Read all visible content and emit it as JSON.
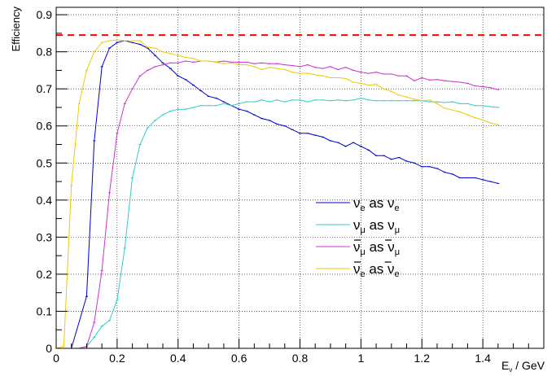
{
  "chart_data": {
    "type": "line",
    "title": "",
    "xlabel": "E_ν / GeV",
    "ylabel": "Efficiency",
    "xlim": [
      0,
      1.6
    ],
    "ylim": [
      0,
      0.92
    ],
    "grid": true,
    "legend_position": "center-right",
    "x_ticks": [
      "0",
      "0.2",
      "0.4",
      "0.6",
      "0.8",
      "1",
      "1.2",
      "1.4"
    ],
    "y_ticks": [
      "0",
      "0.1",
      "0.2",
      "0.3",
      "0.4",
      "0.5",
      "0.6",
      "0.7",
      "0.8",
      "0.9"
    ],
    "reference_line": {
      "y": 0.845,
      "color": "#ff0000"
    },
    "series": [
      {
        "name": "ν_e as ν_e",
        "color": "#0000cc",
        "points": [
          [
            0,
            0
          ],
          [
            0.05,
            0
          ],
          [
            0.1,
            0.14
          ],
          [
            0.125,
            0.56
          ],
          [
            0.15,
            0.76
          ],
          [
            0.175,
            0.81
          ],
          [
            0.2,
            0.825
          ],
          [
            0.225,
            0.83
          ],
          [
            0.25,
            0.825
          ],
          [
            0.275,
            0.82
          ],
          [
            0.3,
            0.81
          ],
          [
            0.325,
            0.79
          ],
          [
            0.35,
            0.77
          ],
          [
            0.375,
            0.755
          ],
          [
            0.4,
            0.735
          ],
          [
            0.425,
            0.725
          ],
          [
            0.45,
            0.71
          ],
          [
            0.475,
            0.695
          ],
          [
            0.5,
            0.68
          ],
          [
            0.525,
            0.675
          ],
          [
            0.55,
            0.665
          ],
          [
            0.575,
            0.655
          ],
          [
            0.6,
            0.645
          ],
          [
            0.625,
            0.64
          ],
          [
            0.65,
            0.63
          ],
          [
            0.675,
            0.62
          ],
          [
            0.7,
            0.615
          ],
          [
            0.725,
            0.605
          ],
          [
            0.75,
            0.6
          ],
          [
            0.775,
            0.59
          ],
          [
            0.8,
            0.58
          ],
          [
            0.825,
            0.58
          ],
          [
            0.85,
            0.575
          ],
          [
            0.875,
            0.57
          ],
          [
            0.9,
            0.56
          ],
          [
            0.925,
            0.555
          ],
          [
            0.95,
            0.545
          ],
          [
            0.975,
            0.555
          ],
          [
            1.0,
            0.545
          ],
          [
            1.025,
            0.535
          ],
          [
            1.05,
            0.52
          ],
          [
            1.075,
            0.52
          ],
          [
            1.1,
            0.51
          ],
          [
            1.125,
            0.515
          ],
          [
            1.15,
            0.505
          ],
          [
            1.175,
            0.5
          ],
          [
            1.2,
            0.49
          ],
          [
            1.225,
            0.49
          ],
          [
            1.25,
            0.485
          ],
          [
            1.275,
            0.475
          ],
          [
            1.3,
            0.47
          ],
          [
            1.325,
            0.46
          ],
          [
            1.35,
            0.46
          ],
          [
            1.375,
            0.46
          ],
          [
            1.4,
            0.455
          ],
          [
            1.425,
            0.45
          ],
          [
            1.45,
            0.445
          ]
        ]
      },
      {
        "name": "ν_μ as ν_μ",
        "color": "#33cccc",
        "points": [
          [
            0,
            0
          ],
          [
            0.075,
            0
          ],
          [
            0.1,
            0.005
          ],
          [
            0.125,
            0.03
          ],
          [
            0.15,
            0.06
          ],
          [
            0.175,
            0.075
          ],
          [
            0.2,
            0.13
          ],
          [
            0.225,
            0.27
          ],
          [
            0.25,
            0.46
          ],
          [
            0.275,
            0.55
          ],
          [
            0.3,
            0.595
          ],
          [
            0.325,
            0.615
          ],
          [
            0.35,
            0.63
          ],
          [
            0.375,
            0.64
          ],
          [
            0.4,
            0.645
          ],
          [
            0.425,
            0.645
          ],
          [
            0.45,
            0.65
          ],
          [
            0.475,
            0.655
          ],
          [
            0.5,
            0.655
          ],
          [
            0.525,
            0.655
          ],
          [
            0.55,
            0.66
          ],
          [
            0.575,
            0.655
          ],
          [
            0.6,
            0.66
          ],
          [
            0.625,
            0.665
          ],
          [
            0.65,
            0.665
          ],
          [
            0.675,
            0.67
          ],
          [
            0.7,
            0.665
          ],
          [
            0.725,
            0.67
          ],
          [
            0.75,
            0.665
          ],
          [
            0.775,
            0.67
          ],
          [
            0.8,
            0.67
          ],
          [
            0.825,
            0.665
          ],
          [
            0.85,
            0.67
          ],
          [
            0.875,
            0.67
          ],
          [
            0.9,
            0.668
          ],
          [
            0.925,
            0.67
          ],
          [
            0.95,
            0.668
          ],
          [
            0.975,
            0.67
          ],
          [
            1.0,
            0.675
          ],
          [
            1.025,
            0.67
          ],
          [
            1.05,
            0.668
          ],
          [
            1.075,
            0.668
          ],
          [
            1.1,
            0.668
          ],
          [
            1.125,
            0.668
          ],
          [
            1.15,
            0.668
          ],
          [
            1.175,
            0.668
          ],
          [
            1.2,
            0.668
          ],
          [
            1.225,
            0.665
          ],
          [
            1.25,
            0.665
          ],
          [
            1.275,
            0.663
          ],
          [
            1.3,
            0.665
          ],
          [
            1.325,
            0.66
          ],
          [
            1.35,
            0.66
          ],
          [
            1.375,
            0.655
          ],
          [
            1.4,
            0.655
          ],
          [
            1.425,
            0.652
          ],
          [
            1.45,
            0.65
          ]
        ]
      },
      {
        "name": "ν̄_μ as ν̄_μ",
        "color": "#cc33cc",
        "points": [
          [
            0,
            0
          ],
          [
            0.075,
            0
          ],
          [
            0.1,
            0.005
          ],
          [
            0.125,
            0.07
          ],
          [
            0.15,
            0.21
          ],
          [
            0.175,
            0.42
          ],
          [
            0.2,
            0.58
          ],
          [
            0.225,
            0.66
          ],
          [
            0.25,
            0.7
          ],
          [
            0.275,
            0.735
          ],
          [
            0.3,
            0.75
          ],
          [
            0.325,
            0.76
          ],
          [
            0.35,
            0.765
          ],
          [
            0.375,
            0.77
          ],
          [
            0.4,
            0.77
          ],
          [
            0.425,
            0.775
          ],
          [
            0.45,
            0.772
          ],
          [
            0.475,
            0.775
          ],
          [
            0.5,
            0.775
          ],
          [
            0.525,
            0.772
          ],
          [
            0.55,
            0.775
          ],
          [
            0.575,
            0.772
          ],
          [
            0.6,
            0.772
          ],
          [
            0.625,
            0.772
          ],
          [
            0.65,
            0.768
          ],
          [
            0.675,
            0.77
          ],
          [
            0.7,
            0.768
          ],
          [
            0.725,
            0.768
          ],
          [
            0.75,
            0.765
          ],
          [
            0.775,
            0.763
          ],
          [
            0.8,
            0.76
          ],
          [
            0.825,
            0.765
          ],
          [
            0.85,
            0.758
          ],
          [
            0.875,
            0.755
          ],
          [
            0.9,
            0.76
          ],
          [
            0.925,
            0.752
          ],
          [
            0.95,
            0.758
          ],
          [
            0.975,
            0.75
          ],
          [
            1.0,
            0.745
          ],
          [
            1.025,
            0.742
          ],
          [
            1.05,
            0.745
          ],
          [
            1.075,
            0.74
          ],
          [
            1.1,
            0.74
          ],
          [
            1.125,
            0.735
          ],
          [
            1.15,
            0.735
          ],
          [
            1.175,
            0.722
          ],
          [
            1.2,
            0.73
          ],
          [
            1.225,
            0.724
          ],
          [
            1.25,
            0.725
          ],
          [
            1.275,
            0.722
          ],
          [
            1.3,
            0.72
          ],
          [
            1.325,
            0.718
          ],
          [
            1.35,
            0.715
          ],
          [
            1.375,
            0.708
          ],
          [
            1.4,
            0.706
          ],
          [
            1.425,
            0.703
          ],
          [
            1.45,
            0.698
          ]
        ]
      },
      {
        "name": "ν̄_e as ν̄_e",
        "color": "#eecc00",
        "points": [
          [
            0,
            0
          ],
          [
            0.025,
            0.005
          ],
          [
            0.05,
            0.44
          ],
          [
            0.075,
            0.66
          ],
          [
            0.1,
            0.75
          ],
          [
            0.125,
            0.8
          ],
          [
            0.15,
            0.825
          ],
          [
            0.175,
            0.83
          ],
          [
            0.2,
            0.832
          ],
          [
            0.225,
            0.83
          ],
          [
            0.25,
            0.83
          ],
          [
            0.275,
            0.83
          ],
          [
            0.3,
            0.812
          ],
          [
            0.325,
            0.81
          ],
          [
            0.35,
            0.8
          ],
          [
            0.375,
            0.795
          ],
          [
            0.4,
            0.79
          ],
          [
            0.425,
            0.785
          ],
          [
            0.45,
            0.782
          ],
          [
            0.475,
            0.775
          ],
          [
            0.5,
            0.775
          ],
          [
            0.525,
            0.772
          ],
          [
            0.55,
            0.768
          ],
          [
            0.575,
            0.77
          ],
          [
            0.6,
            0.765
          ],
          [
            0.625,
            0.765
          ],
          [
            0.65,
            0.76
          ],
          [
            0.675,
            0.752
          ],
          [
            0.7,
            0.758
          ],
          [
            0.725,
            0.755
          ],
          [
            0.75,
            0.752
          ],
          [
            0.775,
            0.745
          ],
          [
            0.8,
            0.742
          ],
          [
            0.825,
            0.742
          ],
          [
            0.85,
            0.738
          ],
          [
            0.875,
            0.735
          ],
          [
            0.9,
            0.73
          ],
          [
            0.925,
            0.73
          ],
          [
            0.95,
            0.728
          ],
          [
            0.975,
            0.718
          ],
          [
            1.0,
            0.715
          ],
          [
            1.025,
            0.71
          ],
          [
            1.05,
            0.712
          ],
          [
            1.075,
            0.7
          ],
          [
            1.1,
            0.693
          ],
          [
            1.125,
            0.683
          ],
          [
            1.15,
            0.678
          ],
          [
            1.175,
            0.672
          ],
          [
            1.2,
            0.668
          ],
          [
            1.225,
            0.67
          ],
          [
            1.25,
            0.66
          ],
          [
            1.275,
            0.648
          ],
          [
            1.3,
            0.643
          ],
          [
            1.325,
            0.638
          ],
          [
            1.35,
            0.63
          ],
          [
            1.375,
            0.622
          ],
          [
            1.4,
            0.616
          ],
          [
            1.425,
            0.608
          ],
          [
            1.45,
            0.603
          ]
        ]
      }
    ]
  },
  "legend": {
    "entries": [
      {
        "nu": "ν",
        "bar": false,
        "sub": "e",
        "as": "as"
      },
      {
        "nu": "ν",
        "bar": false,
        "sub": "μ",
        "as": "as"
      },
      {
        "nu": "ν",
        "bar": true,
        "sub": "μ",
        "as": "as"
      },
      {
        "nu": "ν",
        "bar": true,
        "sub": "e",
        "as": "as"
      }
    ]
  },
  "axis_text": {
    "ylabel": "Efficiency",
    "xlabel_main": "E",
    "xlabel_sub": "ν",
    "xlabel_unit": " / GeV"
  }
}
